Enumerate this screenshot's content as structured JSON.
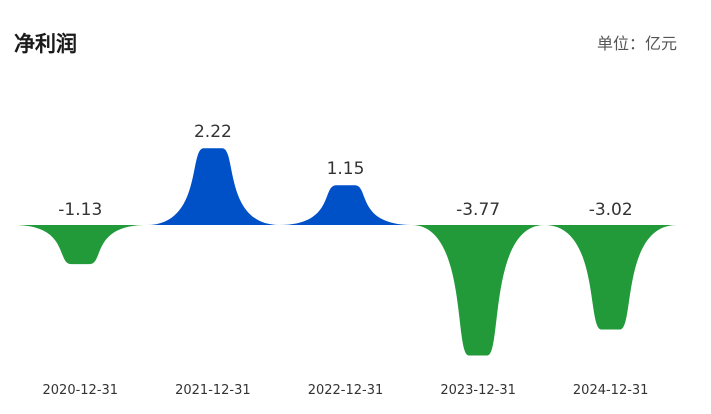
{
  "header": {
    "title": "净利润",
    "unit": "单位：亿元"
  },
  "colors": {
    "positive": "#0050c8",
    "negative": "#229a3a"
  },
  "chart_data": {
    "type": "area",
    "categories": [
      "2020-12-31",
      "2021-12-31",
      "2022-12-31",
      "2023-12-31",
      "2024-12-31"
    ],
    "values": [
      -1.13,
      2.22,
      1.15,
      -3.77,
      -3.02
    ],
    "value_labels": [
      "-1.13",
      "2.22",
      "1.15",
      "-3.77",
      "-3.02"
    ],
    "title": "净利润",
    "ylabel": "单位：亿元"
  }
}
